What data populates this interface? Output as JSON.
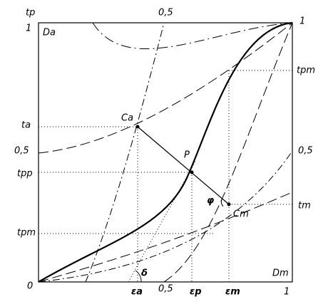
{
  "labels": {
    "tp": "tp",
    "one_top_left": "1",
    "da": "Da",
    "half_top": "0,5",
    "one_top_right": "1",
    "tpm_right": "tpm",
    "ta": "ta",
    "ca": "Ca",
    "half_left": "0,5",
    "half_right": "0,5",
    "p": "P",
    "tpp": "tpp",
    "phi": "φ",
    "cm": "Cm",
    "tm": "tm",
    "tpm_left": "tpm",
    "delta": "δ",
    "dm": "Dm",
    "zero": "0",
    "eps_a": "εa",
    "half_bottom": "0,5",
    "eps_p": "εp",
    "eps_m": "εm",
    "one_bottom": "1"
  }
}
